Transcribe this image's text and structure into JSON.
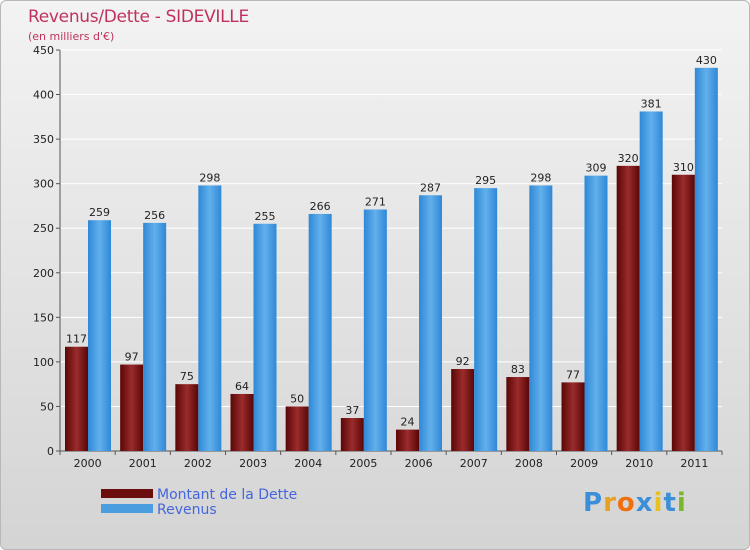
{
  "title": "Revenus/Dette - SIDEVILLE",
  "subtitle": "(en milliers d'€)",
  "logo_text": "Proxiti",
  "colors": {
    "title": "#c0325d",
    "debt_bar": "#7a1a1a",
    "revenue_bar": "#4a9ee0",
    "legend_text": "#4466dd"
  },
  "chart_data": {
    "type": "bar",
    "categories": [
      "2000",
      "2001",
      "2002",
      "2003",
      "2004",
      "2005",
      "2006",
      "2007",
      "2008",
      "2009",
      "2010",
      "2011"
    ],
    "series": [
      {
        "name": "Montant de la Dette",
        "values": [
          117,
          97,
          75,
          64,
          50,
          37,
          24,
          92,
          83,
          77,
          320,
          310
        ]
      },
      {
        "name": "Revenus",
        "values": [
          259,
          256,
          298,
          255,
          266,
          271,
          287,
          295,
          298,
          309,
          381,
          430
        ]
      }
    ],
    "ylim": [
      0,
      450
    ],
    "yticks": [
      0,
      50,
      100,
      150,
      200,
      250,
      300,
      350,
      400,
      450
    ],
    "grid": true,
    "legend_position": "bottom-left"
  }
}
